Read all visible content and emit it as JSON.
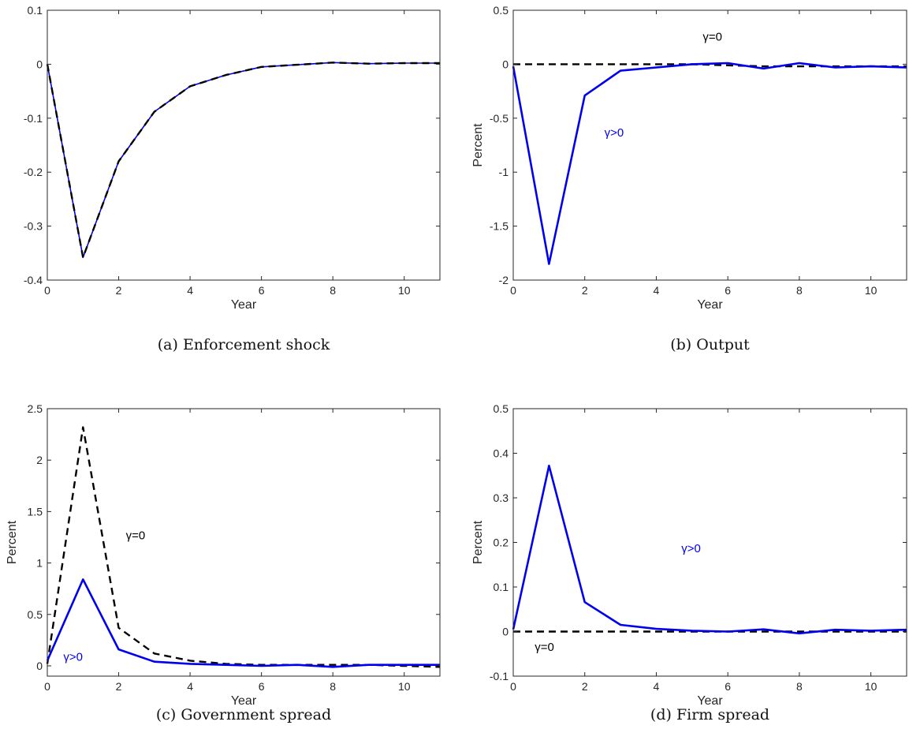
{
  "chart_data": [
    {
      "type": "line",
      "caption": "(a)  Enforcement shock",
      "xlabel": "Year",
      "ylabel": "",
      "xlim": [
        0,
        11
      ],
      "ylim": [
        -0.4,
        0.1
      ],
      "xticks": [
        0,
        2,
        4,
        6,
        8,
        10
      ],
      "xtick_labels": [
        "0",
        "2",
        "4",
        "6",
        "8",
        "10"
      ],
      "yticks": [
        -0.4,
        -0.3,
        -0.2,
        -0.1,
        0,
        0.1
      ],
      "ytick_labels": [
        "-0.4",
        "-0.3",
        "-0.2",
        "-0.1",
        "0",
        "0.1"
      ],
      "series": [
        {
          "color": "#0000ee",
          "style": "solid",
          "x": [
            0,
            1,
            2,
            3,
            4,
            5,
            6,
            7,
            8,
            9,
            10,
            11
          ],
          "values": [
            0,
            -0.358,
            -0.18,
            -0.088,
            -0.041,
            -0.02,
            -0.005,
            -0.001,
            0.003,
            0.001,
            0.002,
            0.002
          ]
        },
        {
          "color": "#000000",
          "style": "dashed",
          "x": [
            0,
            1,
            2,
            3,
            4,
            5,
            6,
            7,
            8,
            9,
            10,
            11
          ],
          "values": [
            0,
            -0.358,
            -0.18,
            -0.088,
            -0.041,
            -0.02,
            -0.005,
            -0.001,
            0.003,
            0.001,
            0.002,
            0.002
          ]
        }
      ],
      "annotations": []
    },
    {
      "type": "line",
      "caption": "(b)  Output",
      "xlabel": "Year",
      "ylabel": "Percent",
      "xlim": [
        0,
        11
      ],
      "ylim": [
        -2,
        0.5
      ],
      "xticks": [
        0,
        2,
        4,
        6,
        8,
        10
      ],
      "xtick_labels": [
        "0",
        "2",
        "4",
        "6",
        "8",
        "10"
      ],
      "yticks": [
        -2,
        -1.5,
        -1,
        -0.5,
        0,
        0.5
      ],
      "ytick_labels": [
        "-2",
        "-1.5",
        "-1",
        "-0.5",
        "0",
        "0.5"
      ],
      "series": [
        {
          "color": "#000000",
          "style": "dashed",
          "x": [
            0,
            1,
            2,
            3,
            4,
            5,
            6,
            7,
            8,
            9,
            10,
            11
          ],
          "values": [
            0,
            0,
            0,
            0,
            0,
            0,
            -0.01,
            -0.02,
            -0.02,
            -0.02,
            -0.02,
            -0.02
          ]
        },
        {
          "color": "#0000ee",
          "style": "solid",
          "x": [
            0,
            1,
            2,
            3,
            4,
            5,
            6,
            7,
            8,
            9,
            10,
            11
          ],
          "values": [
            -0.02,
            -1.85,
            -0.29,
            -0.06,
            -0.03,
            0,
            0.01,
            -0.04,
            0.01,
            -0.03,
            -0.02,
            -0.03
          ]
        }
      ],
      "annotations": [
        {
          "text": "γ=0",
          "x": 5.3,
          "y": 0.22,
          "color": "#000000"
        },
        {
          "text": "γ>0",
          "x": 2.55,
          "y": -0.67,
          "color": "#0000ee"
        }
      ]
    },
    {
      "type": "line",
      "caption": "(c)  Government spread",
      "xlabel": "Year",
      "ylabel": "Percent",
      "xlim": [
        0,
        11
      ],
      "ylim": [
        -0.1,
        2.5
      ],
      "xticks": [
        0,
        2,
        4,
        6,
        8,
        10
      ],
      "xtick_labels": [
        "0",
        "2",
        "4",
        "6",
        "8",
        "10"
      ],
      "yticks": [
        0,
        0.5,
        1,
        1.5,
        2,
        2.5
      ],
      "ytick_labels": [
        "0",
        "0.5",
        "1",
        "1.5",
        "2",
        "2.5"
      ],
      "series": [
        {
          "color": "#000000",
          "style": "dashed",
          "x": [
            0,
            1,
            2,
            3,
            4,
            5,
            6,
            7,
            8,
            9,
            10,
            11
          ],
          "values": [
            0.02,
            2.32,
            0.37,
            0.12,
            0.05,
            0.02,
            0.01,
            0.01,
            0.01,
            0.01,
            0,
            -0.01
          ]
        },
        {
          "color": "#0000ee",
          "style": "solid",
          "x": [
            0,
            1,
            2,
            3,
            4,
            5,
            6,
            7,
            8,
            9,
            10,
            11
          ],
          "values": [
            0.05,
            0.84,
            0.16,
            0.04,
            0.02,
            0.01,
            0,
            0.01,
            -0.01,
            0.01,
            0.01,
            0.01
          ]
        }
      ],
      "annotations": [
        {
          "text": "γ=0",
          "x": 2.2,
          "y": 1.23,
          "color": "#000000"
        },
        {
          "text": "γ>0",
          "x": 0.45,
          "y": 0.05,
          "color": "#0000ee"
        }
      ]
    },
    {
      "type": "line",
      "caption": "(d)  Firm spread",
      "xlabel": "Year",
      "ylabel": "Percent",
      "xlim": [
        0,
        11
      ],
      "ylim": [
        -0.1,
        0.5
      ],
      "xticks": [
        0,
        2,
        4,
        6,
        8,
        10
      ],
      "xtick_labels": [
        "0",
        "2",
        "4",
        "6",
        "8",
        "10"
      ],
      "yticks": [
        -0.1,
        0,
        0.1,
        0.2,
        0.3,
        0.4,
        0.5
      ],
      "ytick_labels": [
        "-0.1",
        "0",
        "0.1",
        "0.2",
        "0.3",
        "0.4",
        "0.5"
      ],
      "series": [
        {
          "color": "#000000",
          "style": "dashed",
          "x": [
            0,
            1,
            2,
            3,
            4,
            5,
            6,
            7,
            8,
            9,
            10,
            11
          ],
          "values": [
            0,
            0,
            0,
            0,
            0,
            0,
            0,
            0,
            0,
            0,
            0,
            0
          ]
        },
        {
          "color": "#0000ee",
          "style": "solid",
          "x": [
            0,
            1,
            2,
            3,
            4,
            5,
            6,
            7,
            8,
            9,
            10,
            11
          ],
          "values": [
            0.005,
            0.372,
            0.066,
            0.015,
            0.006,
            0.002,
            0,
            0.005,
            -0.004,
            0.004,
            0.002,
            0.004
          ]
        }
      ],
      "annotations": [
        {
          "text": "γ>0",
          "x": 4.7,
          "y": 0.178,
          "color": "#0000ee"
        },
        {
          "text": "γ=0",
          "x": 0.6,
          "y": -0.043,
          "color": "#000000"
        }
      ]
    }
  ]
}
